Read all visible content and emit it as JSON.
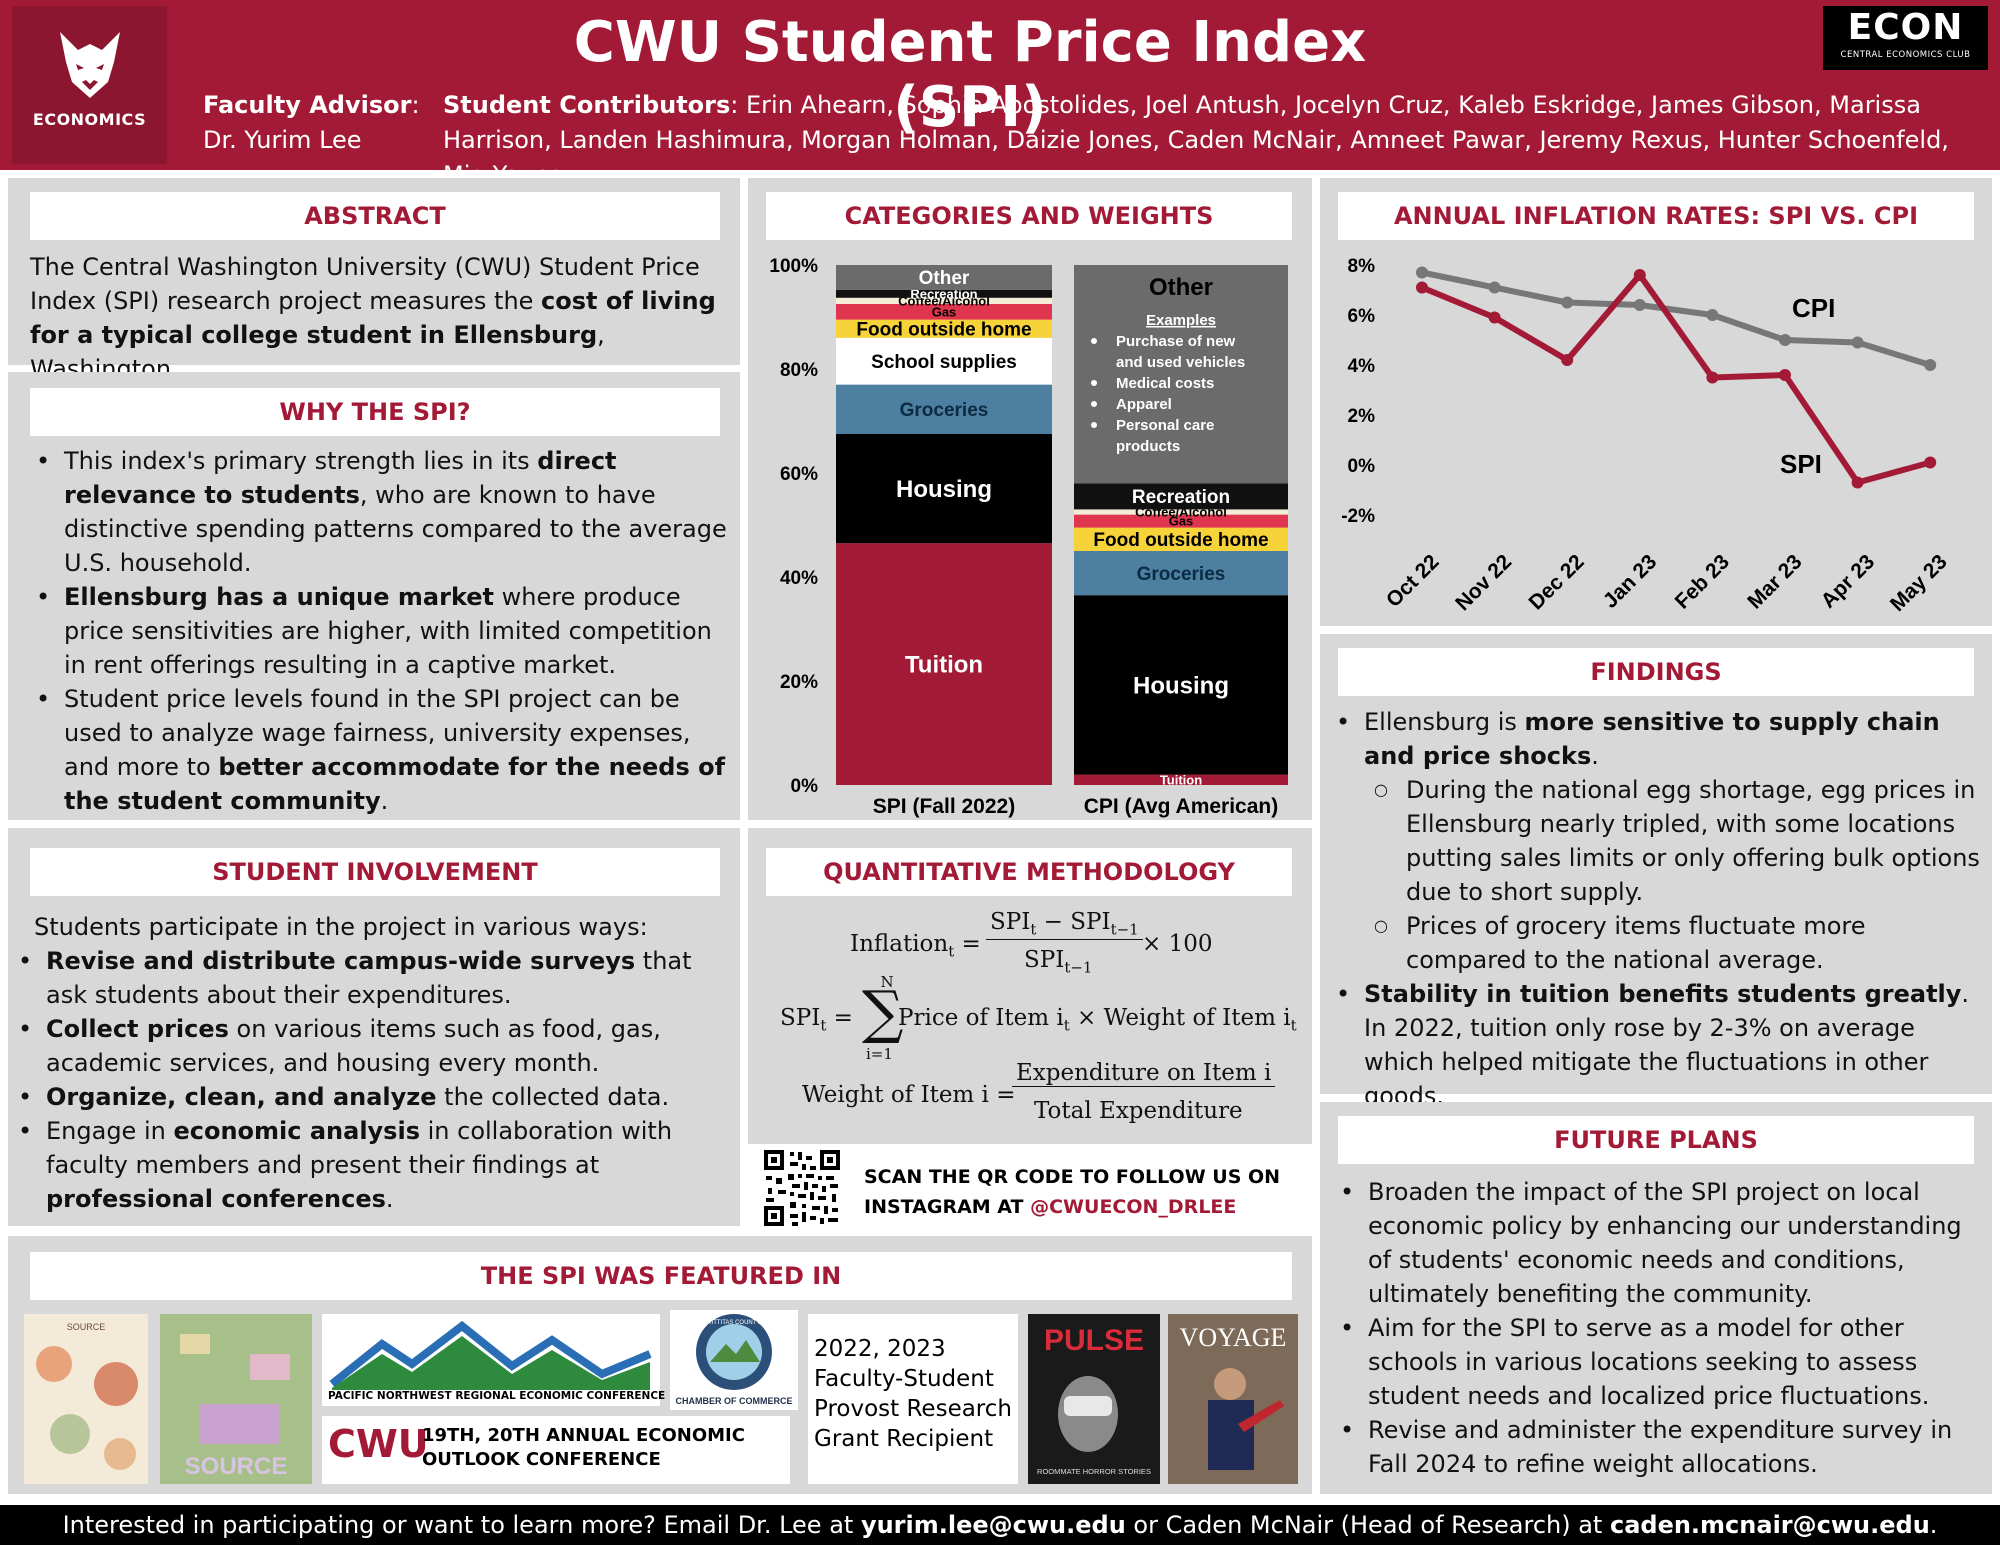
{
  "header": {
    "title": "CWU Student Price Index (SPI)",
    "logo_label": "ECONOMICS",
    "advisor_label": "Faculty Advisor",
    "advisor_name": "Dr. Yurim Lee",
    "contrib_label": "Student Contributors",
    "contrib_names": "Erin Ahearn, Sophia Apostolides, Joel Antush, Jocelyn Cruz, Kaleb Eskridge, James Gibson, Marissa Harrison, Landen Hashimura, Morgan Holman, Daizie Jones, Caden McNair, Amneet Pawar, Jeremy Rexus, Hunter Schoenfeld, Mia Young",
    "econ_logo": "ECON",
    "econ_sub": "CENTRAL ECONOMICS CLUB"
  },
  "abstract": {
    "title": "ABSTRACT",
    "t1": "The Central Washington University (CWU) Student Price Index (SPI) research project measures the ",
    "t2": "cost of living for a typical college student in Ellensburg",
    "t3": ", Washington."
  },
  "why": {
    "title": "WHY THE SPI?",
    "b1a": "This index's primary strength lies in its ",
    "b1b": "direct relevance to students",
    "b1c": ", who are known to have distinctive spending patterns compared to the average U.S. household.",
    "b2a": "Ellensburg has a unique market",
    "b2b": " where produce price sensitivities are higher, with limited competition in rent offerings resulting in a captive market.",
    "b3a": "Student price levels found in the SPI project can be used to analyze wage fairness, university expenses, and more to ",
    "b3b": "better accommodate for the needs of the student community",
    "b3c": "."
  },
  "involve": {
    "title": "STUDENT INVOLVEMENT",
    "intro": "Students participate in the project in various ways:",
    "b1a": "Revise and distribute campus-wide surveys",
    "b1b": " that ask students about their expenditures.",
    "b2a": "Collect prices",
    "b2b": " on various items such as food, gas, academic services, and housing every month.",
    "b3a": "Organize, clean, and analyze",
    "b3b": " the collected data.",
    "b4a": "Engage in ",
    "b4b": "economic analysis",
    "b4c": " in collaboration with faculty members and present their findings at ",
    "b4d": "professional conferences",
    "b4e": "."
  },
  "weights": {
    "title": "CATEGORIES AND WEIGHTS",
    "other_title": "Other",
    "examples_label": "Examples",
    "examples": [
      "Purchase of new and used vehicles",
      "Medical costs",
      "Apparel",
      "Personal care products"
    ]
  },
  "method": {
    "title": "QUANTITATIVE METHODOLOGY",
    "qr_text_1": "SCAN THE QR CODE TO FOLLOW US ON",
    "qr_text_2a": "INSTAGRAM AT ",
    "qr_text_2b": "@CWUECON_DRLEE",
    "f1_lhs": "Inflation",
    "f1_num": "SPI",
    "f1_minus": " − SPI",
    "f1_den": "SPI",
    "f1_tail": "× 100",
    "f2_lhs": "SPI",
    "f2_top": "N",
    "f2_bot": "i=1",
    "f2_rhs": "Price of Item i",
    "f2_rhs2": " × Weight of Item i",
    "f3_lhs": "Weight of Item i =",
    "f3_num": "Expenditure on Item i",
    "f3_den": "Total Expenditure"
  },
  "inflation": {
    "title": "ANNUAL INFLATION RATES: SPI VS. CPI"
  },
  "findings": {
    "title": "FINDINGS",
    "b1a": "Ellensburg is ",
    "b1b": "more sensitive to supply chain and price shocks",
    "b1c": ".",
    "s1": "During the national egg shortage, egg prices in Ellensburg nearly tripled, with some locations putting sales limits or only offering bulk options due to short supply.",
    "s2": "Prices of grocery items fluctuate more compared to the national average.",
    "b2a": "Stability in tuition benefits students greatly",
    "b2b": ". In 2022, tuition only rose by 2-3% on average which helped mitigate the fluctuations in other goods."
  },
  "future": {
    "title": "FUTURE PLANS",
    "b1": "Broaden the impact of the SPI project on local economic policy by enhancing our understanding of students' economic needs and conditions, ultimately benefiting the community.",
    "b2": "Aim for the SPI to serve as a model for other schools in various locations seeking to assess student needs and localized price fluctuations.",
    "b3": "Revise and administer the expenditure survey in Fall 2024 to refine weight allocations."
  },
  "featured": {
    "title": "THE SPI WAS FEATURED IN",
    "pnw": "PACIFIC NORTHWEST REGIONAL ECONOMIC CONFERENCE",
    "cwu": "CWU",
    "conf": "19TH, 20TH ANNUAL ECONOMIC OUTLOOK CONFERENCE",
    "chamber": "CHAMBER OF COMMERCE",
    "chamber_top": "KITTITAS COUNTY",
    "grant": "2022, 2023 Faculty-Student Provost Research Grant Recipient",
    "source1": "SOURCE",
    "source2": "SOURCE",
    "pulse": "PULSE",
    "pulse_sub": "ROOMMATE HORROR STORIES",
    "voyage": "VOYAGE"
  },
  "footer": {
    "a": "Interested in participating or want to learn more? Email Dr. Lee at ",
    "b": "yurim.lee@cwu.edu",
    "c": " or Caden McNair (Head of Research) at ",
    "d": "caden.mcnair@cwu.edu",
    "e": "."
  },
  "chart_data": [
    {
      "type": "bar",
      "stacked": true,
      "categories": [
        "SPI (Fall 2022)",
        "CPI (Avg American)"
      ],
      "ylim": [
        0,
        100
      ],
      "yticks": [
        "0%",
        "20%",
        "40%",
        "60%",
        "80%",
        "100%"
      ],
      "series": [
        {
          "name": "Tuition",
          "color": "#a31a37",
          "values": [
            46.5,
            2.0
          ]
        },
        {
          "name": "Housing",
          "color": "#000000",
          "values": [
            21.0,
            34.5
          ]
        },
        {
          "name": "Groceries",
          "color": "#4d7fa0",
          "values": [
            9.5,
            8.5
          ]
        },
        {
          "name": "School supplies",
          "color": "#ffffff",
          "values": [
            9.0,
            0
          ]
        },
        {
          "name": "Food outside home",
          "color": "#f7d33a",
          "values": [
            3.5,
            4.5
          ]
        },
        {
          "name": "Gas",
          "color": "#e0354e",
          "values": [
            3.0,
            2.5
          ]
        },
        {
          "name": "Coffee/Alcohol",
          "color": "#f3ecd6",
          "values": [
            1.2,
            1.0
          ]
        },
        {
          "name": "Recreation",
          "color": "#111111",
          "values": [
            1.5,
            5.0
          ]
        },
        {
          "name": "Other",
          "color": "#6b6b6b",
          "values": [
            4.8,
            42.0
          ]
        }
      ]
    },
    {
      "type": "line",
      "categories": [
        "Oct 22",
        "Nov 22",
        "Dec 22",
        "Jan 23",
        "Feb 23",
        "Mar 23",
        "Apr 23",
        "May 23"
      ],
      "ylim": [
        -2,
        8
      ],
      "yticks": [
        "8%",
        "6%",
        "4%",
        "2%",
        "0%",
        "-2%"
      ],
      "grid": false,
      "series": [
        {
          "name": "CPI",
          "color": "#777777",
          "values": [
            7.7,
            7.1,
            6.5,
            6.4,
            6.0,
            5.0,
            4.9,
            4.0
          ]
        },
        {
          "name": "SPI",
          "color": "#a31a37",
          "values": [
            7.1,
            5.9,
            4.2,
            7.6,
            3.5,
            3.6,
            -0.7,
            0.1
          ]
        }
      ]
    }
  ]
}
